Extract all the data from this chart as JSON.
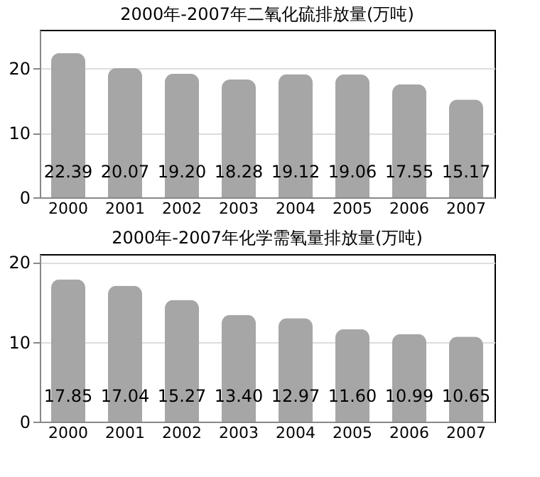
{
  "chart_data": [
    {
      "type": "bar",
      "title": "2000年-2007年二氧化硫排放量(万吨)",
      "categories": [
        "2000",
        "2001",
        "2002",
        "2003",
        "2004",
        "2005",
        "2006",
        "2007"
      ],
      "values": [
        22.39,
        20.07,
        19.2,
        18.28,
        19.12,
        19.06,
        17.55,
        15.17
      ],
      "value_labels": [
        "22.39",
        "20.07",
        "19.20",
        "18.28",
        "19.12",
        "19.06",
        "17.55",
        "15.17"
      ],
      "color": "#a6a6a6",
      "ylim": [
        0,
        26
      ],
      "yticks": [
        0,
        10,
        20
      ],
      "grid": "y",
      "legend": false
    },
    {
      "type": "bar",
      "title": "2000年-2007年化学需氧量排放量(万吨)",
      "categories": [
        "2000",
        "2001",
        "2002",
        "2003",
        "2004",
        "2005",
        "2006",
        "2007"
      ],
      "values": [
        17.85,
        17.04,
        15.27,
        13.4,
        12.97,
        11.6,
        10.99,
        10.65
      ],
      "value_labels": [
        "17.85",
        "17.04",
        "15.27",
        "13.40",
        "12.97",
        "11.60",
        "10.99",
        "10.65"
      ],
      "color": "#a6a6a6",
      "ylim": [
        0,
        21
      ],
      "yticks": [
        0,
        10,
        20
      ],
      "grid": "y",
      "legend": false
    }
  ]
}
